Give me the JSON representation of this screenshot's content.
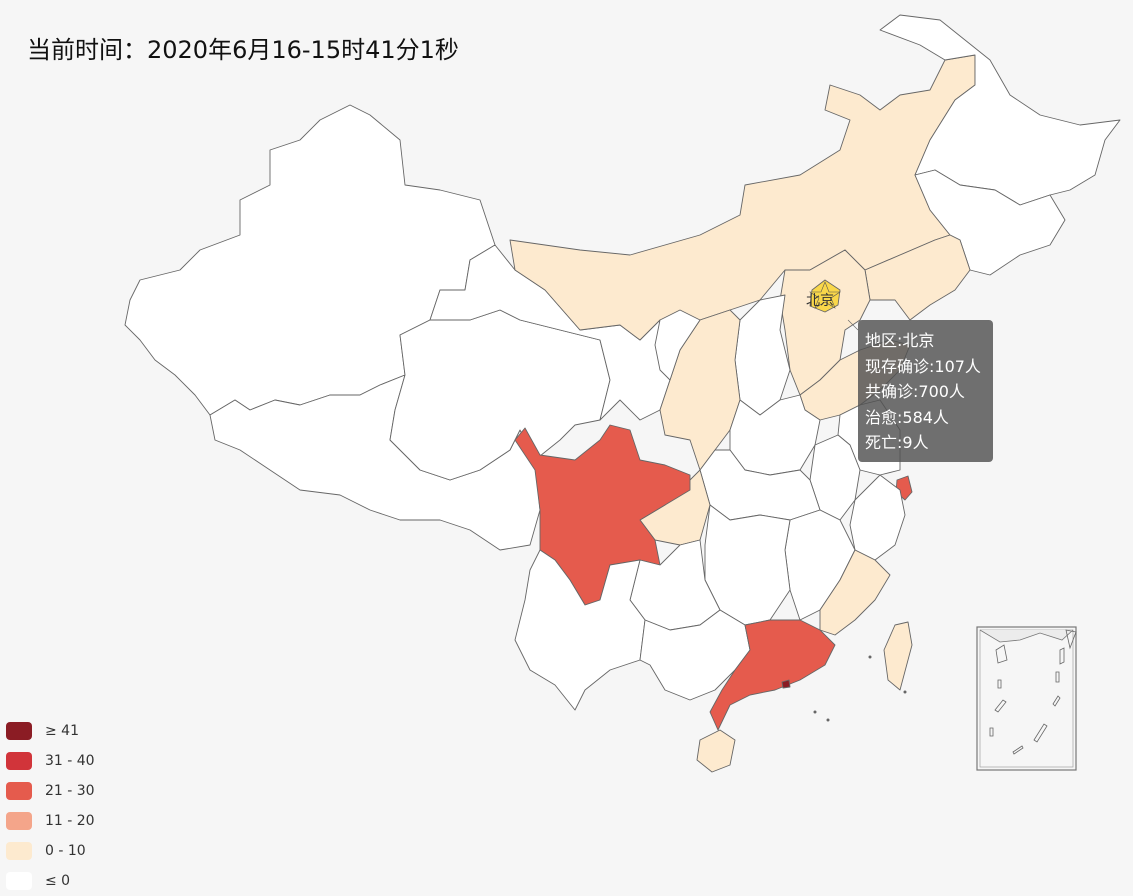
{
  "title": "当前时间：2020年6月16-15时41分1秒",
  "legend": [
    {
      "label": "≥ 41",
      "color": "#8b1c24"
    },
    {
      "label": "31 - 40",
      "color": "#d1343a"
    },
    {
      "label": "21 - 30",
      "color": "#e55b4d"
    },
    {
      "label": "11 - 20",
      "color": "#f4a58a"
    },
    {
      "label": "0 - 10",
      "color": "#fdeacf"
    },
    {
      "label": "≤ 0",
      "color": "#ffffff"
    }
  ],
  "map_label": "北京",
  "tooltip": {
    "region": "地区:北京",
    "current": "现存确诊:107人",
    "total": "共确诊:700人",
    "cured": "治愈:584人",
    "dead": "死亡:9人"
  },
  "colors": {
    "background": "#f6f6f6",
    "low": "#fdeacf",
    "mid": "#e55b4d",
    "zero": "#ffffff",
    "highlight": "#f9d74a"
  }
}
